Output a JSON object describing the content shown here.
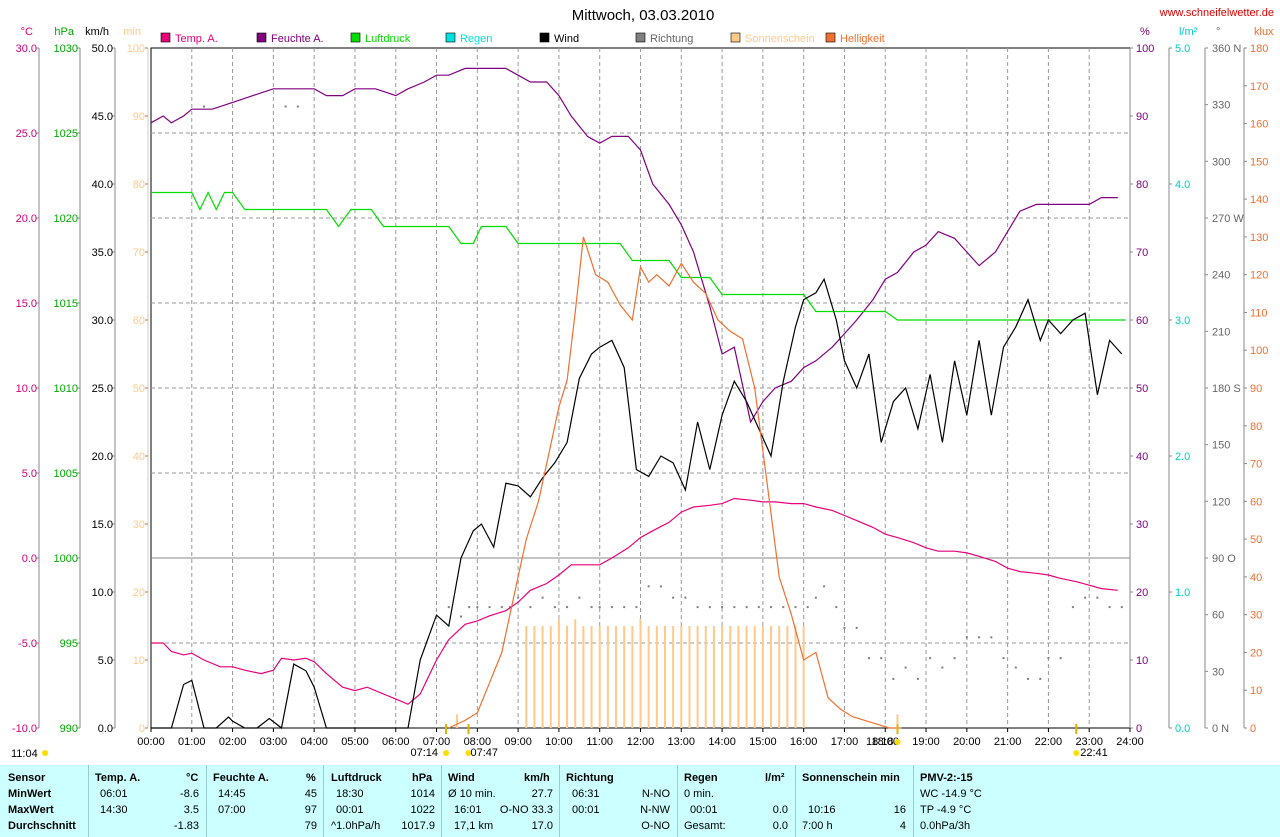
{
  "site": "www.schneifelwetter.de",
  "title": "Mittwoch, 03.03.2010",
  "time_label": "11:04",
  "legend": [
    {
      "label": "Temp. A.",
      "color": "#e8007a"
    },
    {
      "label": "Feuchte A.",
      "color": "#800080"
    },
    {
      "label": "Luftdruck",
      "color": "#00dd00"
    },
    {
      "label": "Regen",
      "color": "#00e0e0"
    },
    {
      "label": "Wind",
      "color": "#000000"
    },
    {
      "label": "Richtung",
      "color": "#808080"
    },
    {
      "label": "Sonnenschein",
      "color": "#ffc98a"
    },
    {
      "label": "Helligkeit",
      "color": "#f07030"
    }
  ],
  "left_axes": [
    {
      "unit": "°C",
      "color": "#d4007a",
      "ticks": [
        "30.0",
        "25.0",
        "20.0",
        "15.0",
        "10.0",
        "5.0",
        "0.0",
        "-5.0",
        "-10.0"
      ]
    },
    {
      "unit": "hPa",
      "color": "#00aa00",
      "ticks": [
        "1030",
        "1025",
        "1020",
        "1015",
        "1010",
        "1005",
        "1000",
        "995",
        "990"
      ]
    },
    {
      "unit": "km/h",
      "color": "#000000",
      "ticks": [
        "50.0",
        "45.0",
        "40.0",
        "35.0",
        "30.0",
        "25.0",
        "20.0",
        "15.0",
        "10.0",
        "5.0",
        "0.0"
      ]
    },
    {
      "unit": "min",
      "color": "#ffc98a",
      "ticks": [
        "100",
        "90",
        "80",
        "70",
        "60",
        "50",
        "40",
        "30",
        "20",
        "10",
        "0"
      ]
    }
  ],
  "right_axes": [
    {
      "unit": "%",
      "color": "#800080",
      "ticks": [
        "100",
        "90",
        "80",
        "70",
        "60",
        "50",
        "40",
        "30",
        "20",
        "10",
        "0"
      ]
    },
    {
      "unit": "l/m²",
      "color": "#00cccc",
      "ticks": [
        "5.0",
        "4.0",
        "3.0",
        "2.0",
        "1.0",
        "0.0"
      ]
    },
    {
      "unit": "°",
      "color": "#666666",
      "ticks": [
        "360 N",
        "330",
        "300",
        "270 W",
        "240",
        "210",
        "180 S",
        "150",
        "120",
        "90 O",
        "60",
        "30",
        "0 N"
      ]
    },
    {
      "unit": "klux",
      "color": "#f07030",
      "ticks": [
        "180",
        "170",
        "160",
        "150",
        "140",
        "130",
        "120",
        "110",
        "100",
        "90",
        "80",
        "70",
        "60",
        "50",
        "40",
        "30",
        "20",
        "10",
        "0"
      ]
    }
  ],
  "x_ticks": [
    "00:00",
    "01:00",
    "02:00",
    "03:00",
    "04:00",
    "05:00",
    "06:00",
    "07:00",
    "08:00",
    "09:00",
    "10:00",
    "11:00",
    "12:00",
    "13:00",
    "14:00",
    "15:00",
    "16:00",
    "17:00",
    "18:00",
    "19:00",
    "20:00",
    "21:00",
    "22:00",
    "23:00",
    "24:00"
  ],
  "markers": [
    "07:14",
    "07:47",
    "18:18",
    "22:41"
  ],
  "chart_data": {
    "type": "line",
    "title": "Mittwoch, 03.03.2010",
    "x_unit": "hours",
    "xlim": [
      0,
      24
    ],
    "series": [
      {
        "name": "Temp. A.",
        "unit": "°C",
        "ylim": [
          -10,
          30
        ],
        "color": "#e8007a",
        "x": [
          0,
          0.3,
          0.5,
          0.8,
          1.0,
          1.3,
          1.7,
          2.0,
          2.3,
          2.7,
          3.0,
          3.2,
          3.5,
          3.8,
          4.0,
          4.3,
          4.7,
          5.0,
          5.3,
          5.7,
          6.0,
          6.3,
          6.6,
          7.0,
          7.3,
          7.7,
          8.0,
          8.3,
          8.7,
          9.0,
          9.3,
          9.7,
          10.0,
          10.3,
          10.7,
          11.0,
          11.3,
          11.7,
          12.0,
          12.3,
          12.7,
          13.0,
          13.3,
          13.7,
          14.0,
          14.3,
          14.7,
          15.0,
          15.3,
          15.7,
          16.0,
          16.3,
          16.7,
          17.0,
          17.3,
          17.7,
          18.0,
          18.3,
          18.7,
          19.0,
          19.3,
          19.7,
          20.0,
          20.3,
          20.7,
          21.0,
          21.3,
          21.7,
          22.0,
          22.3,
          22.7,
          23.0,
          23.3,
          23.7
        ],
        "y": [
          -5.0,
          -5.0,
          -5.5,
          -5.7,
          -5.6,
          -6.0,
          -6.4,
          -6.4,
          -6.6,
          -6.8,
          -6.6,
          -5.9,
          -6.0,
          -5.9,
          -6.1,
          -6.8,
          -7.6,
          -7.8,
          -7.6,
          -8.0,
          -8.3,
          -8.6,
          -8.0,
          -6.0,
          -4.8,
          -3.9,
          -3.7,
          -3.4,
          -3.1,
          -2.6,
          -1.9,
          -1.5,
          -1.0,
          -0.4,
          -0.4,
          -0.4,
          0.0,
          0.6,
          1.2,
          1.6,
          2.1,
          2.7,
          3.0,
          3.1,
          3.2,
          3.5,
          3.4,
          3.3,
          3.3,
          3.2,
          3.2,
          3.0,
          2.8,
          2.5,
          2.2,
          1.8,
          1.4,
          1.2,
          0.9,
          0.6,
          0.4,
          0.4,
          0.3,
          0.1,
          -0.2,
          -0.6,
          -0.8,
          -0.9,
          -1.0,
          -1.2,
          -1.4,
          -1.6,
          -1.8,
          -1.9
        ]
      },
      {
        "name": "Feuchte A.",
        "unit": "%",
        "ylim": [
          0,
          100
        ],
        "color": "#800080",
        "x": [
          0,
          0.3,
          0.5,
          0.8,
          1.0,
          1.5,
          2.0,
          2.5,
          3.0,
          3.5,
          4.0,
          4.3,
          4.7,
          5.0,
          5.5,
          6.0,
          6.3,
          6.7,
          7.0,
          7.3,
          7.7,
          8.0,
          8.3,
          8.7,
          9.0,
          9.3,
          9.7,
          10.0,
          10.3,
          10.7,
          11.0,
          11.3,
          11.7,
          12.0,
          12.3,
          12.7,
          13.0,
          13.3,
          13.7,
          14.0,
          14.3,
          14.7,
          15.0,
          15.3,
          15.7,
          16.0,
          16.3,
          16.7,
          17.0,
          17.3,
          17.7,
          18.0,
          18.3,
          18.7,
          19.0,
          19.3,
          19.7,
          20.0,
          20.3,
          20.7,
          21.0,
          21.3,
          21.7,
          22.0,
          22.3,
          22.7,
          23.0,
          23.3,
          23.7
        ],
        "y": [
          89,
          90,
          89,
          90,
          91,
          91,
          92,
          93,
          94,
          94,
          94,
          93,
          93,
          94,
          94,
          93,
          94,
          95,
          96,
          96,
          97,
          97,
          97,
          97,
          96,
          95,
          95,
          93,
          90,
          87,
          86,
          87,
          87,
          85,
          80,
          77,
          74,
          70,
          62,
          55,
          56,
          45,
          48,
          50,
          51,
          53,
          54,
          56,
          58,
          60,
          63,
          66,
          67,
          70,
          71,
          73,
          72,
          70,
          68,
          70,
          73,
          76,
          77,
          77,
          77,
          77,
          77,
          78,
          78
        ]
      },
      {
        "name": "Luftdruck",
        "unit": "hPa",
        "ylim": [
          990,
          1030
        ],
        "color": "#00dd00",
        "x": [
          0,
          0.3,
          0.6,
          1.0,
          1.2,
          1.4,
          1.6,
          1.8,
          2.0,
          2.3,
          2.5,
          3.0,
          3.5,
          4.0,
          4.3,
          4.6,
          4.9,
          5.1,
          5.4,
          5.7,
          6.0,
          6.3,
          6.6,
          7.0,
          7.3,
          7.6,
          7.9,
          8.1,
          8.4,
          8.7,
          9.0,
          9.3,
          9.6,
          9.9,
          10.2,
          10.5,
          10.9,
          11.2,
          11.5,
          11.8,
          12.1,
          12.4,
          12.7,
          13.0,
          13.3,
          13.7,
          14.0,
          14.3,
          14.7,
          15.0,
          15.3,
          15.7,
          16.0,
          16.3,
          16.7,
          17.0,
          17.3,
          17.7,
          18.0,
          18.3,
          18.7,
          19.0,
          19.3,
          19.7,
          20.0,
          20.5,
          21.0,
          21.5,
          22.0,
          22.5,
          23.0,
          23.5,
          23.9
        ],
        "y": [
          1021.5,
          1021.5,
          1021.5,
          1021.5,
          1020.5,
          1021.5,
          1020.5,
          1021.5,
          1021.5,
          1020.5,
          1020.5,
          1020.5,
          1020.5,
          1020.5,
          1020.5,
          1019.5,
          1020.5,
          1020.5,
          1020.5,
          1019.5,
          1019.5,
          1019.5,
          1019.5,
          1019.5,
          1019.5,
          1018.5,
          1018.5,
          1019.5,
          1019.5,
          1019.5,
          1018.5,
          1018.5,
          1018.5,
          1018.5,
          1018.5,
          1018.5,
          1018.5,
          1018.5,
          1018.5,
          1017.5,
          1017.5,
          1017.5,
          1017.5,
          1016.5,
          1016.5,
          1016.5,
          1015.5,
          1015.5,
          1015.5,
          1015.5,
          1015.5,
          1015.5,
          1015.5,
          1014.5,
          1014.5,
          1014.5,
          1014.5,
          1014.5,
          1014.5,
          1014.0,
          1014.0,
          1014.0,
          1014.0,
          1014.0,
          1014.0,
          1014.0,
          1014.0,
          1014.0,
          1014.0,
          1014.0,
          1014.0,
          1014.0,
          1014.0
        ]
      },
      {
        "name": "Wind",
        "unit": "km/h",
        "ylim": [
          0,
          50
        ],
        "color": "#000000",
        "x": [
          0,
          0.5,
          0.8,
          1.0,
          1.3,
          1.6,
          1.9,
          2.0,
          2.3,
          2.6,
          2.9,
          3.2,
          3.5,
          3.8,
          4.0,
          4.3,
          4.6,
          5.0,
          5.5,
          6.0,
          6.3,
          6.6,
          7.0,
          7.3,
          7.6,
          7.9,
          8.1,
          8.4,
          8.7,
          9.0,
          9.3,
          9.6,
          9.9,
          10.2,
          10.5,
          10.8,
          11.0,
          11.3,
          11.6,
          11.9,
          12.2,
          12.5,
          12.8,
          13.1,
          13.4,
          13.7,
          14.0,
          14.3,
          14.6,
          14.9,
          15.2,
          15.5,
          15.8,
          16.0,
          16.3,
          16.5,
          16.8,
          17.0,
          17.3,
          17.6,
          17.9,
          18.2,
          18.5,
          18.8,
          19.1,
          19.4,
          19.7,
          20.0,
          20.3,
          20.6,
          20.9,
          21.2,
          21.5,
          21.8,
          22.0,
          22.3,
          22.6,
          22.9,
          23.2,
          23.5,
          23.8
        ],
        "y": [
          0,
          0,
          3.2,
          3.5,
          0,
          0,
          0.8,
          0.5,
          0,
          0,
          0.7,
          0,
          4.7,
          4.2,
          3.0,
          0,
          0,
          0,
          0,
          0,
          0,
          5,
          8.3,
          7.5,
          12.5,
          14.5,
          15.0,
          13.3,
          18.0,
          17.8,
          17.0,
          18.4,
          19.5,
          21.0,
          25.7,
          27.5,
          28.0,
          28.5,
          26.5,
          19.0,
          18.5,
          20.0,
          19.5,
          17.5,
          22.5,
          19.0,
          23.0,
          25.5,
          24.0,
          22.0,
          20.0,
          25.5,
          29.5,
          31.5,
          32.0,
          33.0,
          30.0,
          27.0,
          25.0,
          27.5,
          21.0,
          24.0,
          25.0,
          22.0,
          26.0,
          21.0,
          27.0,
          23.0,
          28.5,
          23.0,
          28.0,
          29.5,
          31.5,
          28.5,
          30.0,
          29.0,
          30.0,
          30.5,
          24.5,
          28.5,
          27.5
        ]
      },
      {
        "name": "Helligkeit",
        "unit": "klux",
        "ylim": [
          0,
          180
        ],
        "color": "#f07030",
        "x": [
          7.3,
          7.7,
          8.0,
          8.3,
          8.6,
          8.9,
          9.2,
          9.5,
          9.8,
          10.0,
          10.2,
          10.4,
          10.6,
          10.9,
          11.2,
          11.5,
          11.8,
          12.0,
          12.2,
          12.4,
          12.7,
          13.0,
          13.3,
          13.6,
          13.9,
          14.2,
          14.5,
          14.8,
          15.1,
          15.4,
          15.7,
          16.0,
          16.3,
          16.6,
          16.9,
          17.2,
          17.5,
          17.8,
          18.1,
          18.4
        ],
        "y": [
          0,
          2,
          4,
          12,
          20,
          35,
          50,
          60,
          75,
          85,
          92,
          110,
          130,
          120,
          118,
          112,
          108,
          122,
          118,
          120,
          117,
          123,
          118,
          115,
          108,
          105,
          103,
          90,
          65,
          40,
          30,
          18,
          20,
          8,
          5,
          3,
          2,
          1,
          0,
          0
        ]
      },
      {
        "name": "Sonnenschein",
        "unit": "min",
        "ylim": [
          0,
          100
        ],
        "color": "#ffc98a",
        "x": [
          7.5,
          9.2,
          9.4,
          9.6,
          9.8,
          10.0,
          10.2,
          10.4,
          10.6,
          10.8,
          11.0,
          11.2,
          11.4,
          11.6,
          11.8,
          12.0,
          12.2,
          12.4,
          12.6,
          12.8,
          13.0,
          13.2,
          13.4,
          13.6,
          13.8,
          14.0,
          14.2,
          14.4,
          14.6,
          14.8,
          15.0,
          15.2,
          15.4,
          15.6,
          15.8,
          16.0,
          18.3
        ],
        "y": [
          2,
          15,
          15,
          15,
          15,
          16,
          15,
          16,
          15,
          15,
          15,
          15,
          15,
          15,
          15,
          16,
          15,
          15,
          15,
          15,
          15,
          15,
          15,
          15,
          15,
          15,
          15,
          15,
          15,
          15,
          15,
          15,
          15,
          15,
          15,
          15,
          2
        ]
      },
      {
        "name": "Richtung",
        "unit": "°",
        "ylim": [
          0,
          360
        ],
        "color": "#808080",
        "x": [
          1.3,
          3.3,
          3.6,
          7.3,
          7.6,
          7.8,
          8.0,
          8.3,
          8.6,
          8.8,
          9.0,
          9.3,
          9.6,
          9.9,
          10.2,
          10.5,
          10.8,
          11.0,
          11.3,
          11.6,
          11.9,
          12.2,
          12.5,
          12.8,
          13.1,
          13.4,
          13.7,
          14.0,
          14.3,
          14.6,
          14.9,
          15.2,
          15.5,
          15.8,
          16.1,
          16.3,
          16.5,
          16.8,
          17.0,
          17.3,
          17.6,
          17.9,
          18.2,
          18.5,
          18.8,
          19.1,
          19.4,
          19.7,
          20.0,
          20.3,
          20.6,
          20.9,
          21.2,
          21.5,
          21.8,
          22.0,
          22.3,
          22.6,
          22.9,
          23.2,
          23.5,
          23.8
        ],
        "y": [
          329,
          329,
          329,
          64,
          59,
          64,
          64,
          64,
          64,
          64,
          69,
          64,
          69,
          64,
          64,
          69,
          64,
          64,
          64,
          64,
          64,
          75,
          75,
          69,
          69,
          64,
          64,
          64,
          64,
          64,
          64,
          64,
          64,
          64,
          64,
          69,
          75,
          64,
          53,
          53,
          37,
          37,
          26,
          32,
          26,
          37,
          32,
          37,
          48,
          48,
          48,
          37,
          32,
          26,
          26,
          37,
          37,
          64,
          69,
          69,
          64,
          64
        ]
      }
    ]
  },
  "stats": {
    "headers": {
      "sensor": "Sensor",
      "temp": "Temp. A.",
      "temp_u": "°C",
      "feuchte": "Feuchte A.",
      "feuchte_u": "%",
      "luft": "Luftdruck",
      "luft_u": "hPa",
      "wind": "Wind",
      "wind_u": "km/h",
      "richtung": "Richtung",
      "regen": "Regen",
      "regen_u": "l/m²",
      "sonne": "Sonnenschein min",
      "pmv": "PMV-2:-15"
    },
    "labels": {
      "min": "MinWert",
      "max": "MaxWert",
      "avg": "Durchschnitt"
    },
    "temp": {
      "min_time": "06:01",
      "min": "-8.6",
      "max_time": "14:30",
      "max": "3.5",
      "avg": "-1.83"
    },
    "feuchte": {
      "min_time": "14:45",
      "min": "45",
      "max_time": "07:00",
      "max": "97",
      "avg": "79"
    },
    "luft": {
      "min_time": "18:30",
      "min": "1014",
      "max_time": "00:01",
      "max": "1022",
      "avg_label": "^1.0hPa/h",
      "avg": "1017.9"
    },
    "wind": {
      "min_label": "Ø 10 min.",
      "min": "27.7",
      "max_time": "16:01",
      "max": "O-NO 33.3",
      "avg_label": "17,1 km",
      "avg": "17.0"
    },
    "richtung": {
      "min_time": "06:31",
      "min": "N-NO",
      "max_time": "00:01",
      "max": "N-NW",
      "avg": "O-NO"
    },
    "regen": {
      "min_label": "0 min.",
      "max_time": "00:01",
      "max": "0.0",
      "avg_label": "Gesamt:",
      "avg": "0.0"
    },
    "sonne": {
      "max_time": "10:16",
      "max": "16",
      "avg_label": "7:00 h",
      "avg": "4"
    },
    "pmv": {
      "min": "WC -14.9 °C",
      "max": "TP -4.9 °C",
      "avg": "0.0hPa/3h"
    }
  }
}
